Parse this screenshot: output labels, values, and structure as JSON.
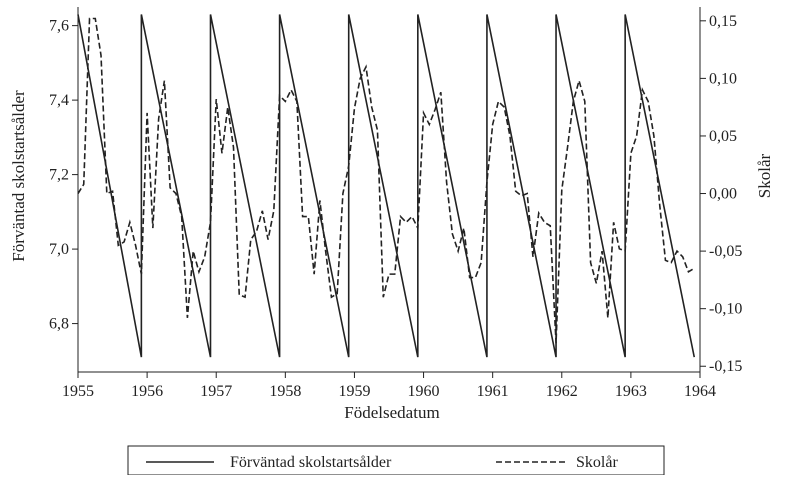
{
  "chart_data": {
    "type": "line",
    "title": "",
    "xlabel": "Födelsedatum",
    "ylabel_left": "Förväntad skolstartsålder",
    "ylabel_right": "Skolår",
    "xlim": [
      1955,
      1964
    ],
    "ylim_left": [
      6.67,
      7.65
    ],
    "ylim_right": [
      -0.155,
      0.162
    ],
    "x_ticks": [
      1955,
      1956,
      1957,
      1958,
      1959,
      1960,
      1961,
      1962,
      1963,
      1964
    ],
    "y_ticks_left": [
      "6,8",
      "7,0",
      "7,2",
      "7,4",
      "7,6"
    ],
    "y_ticks_left_values": [
      6.8,
      7.0,
      7.2,
      7.4,
      7.6
    ],
    "y_ticks_right": [
      "-0,15",
      "-0,10",
      "-0,05",
      "0,00",
      "0,05",
      "0,10",
      "0,15"
    ],
    "y_ticks_right_values": [
      -0.15,
      -0.1,
      -0.05,
      0.0,
      0.05,
      0.1,
      0.15
    ],
    "grid": false,
    "legend_position": "bottom",
    "series": [
      {
        "name": "Förväntad skolstartsålder",
        "axis": "left",
        "style": "solid",
        "color": "#222222",
        "x": [
          1955.0,
          1955.917,
          1955.917,
          1956.917,
          1956.917,
          1957.917,
          1957.917,
          1958.917,
          1958.917,
          1959.917,
          1959.917,
          1960.917,
          1960.917,
          1961.917,
          1961.917,
          1962.917,
          1962.917,
          1963.917
        ],
        "y": [
          7.63,
          6.71,
          7.63,
          6.71,
          7.63,
          6.71,
          7.63,
          6.71,
          7.63,
          6.71,
          7.63,
          6.71,
          7.63,
          6.71,
          7.63,
          6.71,
          7.63,
          6.71
        ]
      },
      {
        "name": "Skolår",
        "axis": "right",
        "style": "dashed",
        "color": "#222222",
        "x": [
          1955.0,
          1955.083,
          1955.167,
          1955.25,
          1955.333,
          1955.417,
          1955.5,
          1955.583,
          1955.667,
          1955.75,
          1955.833,
          1955.917,
          1956.0,
          1956.083,
          1956.167,
          1956.25,
          1956.333,
          1956.417,
          1956.5,
          1956.583,
          1956.667,
          1956.75,
          1956.833,
          1956.917,
          1957.0,
          1957.083,
          1957.167,
          1957.25,
          1957.333,
          1957.417,
          1957.5,
          1957.583,
          1957.667,
          1957.75,
          1957.833,
          1957.917,
          1958.0,
          1958.083,
          1958.167,
          1958.25,
          1958.333,
          1958.417,
          1958.5,
          1958.583,
          1958.667,
          1958.75,
          1958.833,
          1958.917,
          1959.0,
          1959.083,
          1959.167,
          1959.25,
          1959.333,
          1959.417,
          1959.5,
          1959.583,
          1959.667,
          1959.75,
          1959.833,
          1959.917,
          1960.0,
          1960.083,
          1960.167,
          1960.25,
          1960.333,
          1960.417,
          1960.5,
          1960.583,
          1960.667,
          1960.75,
          1960.833,
          1960.917,
          1961.0,
          1961.083,
          1961.167,
          1961.25,
          1961.333,
          1961.417,
          1961.5,
          1961.583,
          1961.667,
          1961.75,
          1961.833,
          1961.917,
          1962.0,
          1962.083,
          1962.167,
          1962.25,
          1962.333,
          1962.417,
          1962.5,
          1962.583,
          1962.667,
          1962.75,
          1962.833,
          1962.917,
          1963.0,
          1963.083,
          1963.167,
          1963.25,
          1963.333,
          1963.417,
          1963.5,
          1963.583,
          1963.667,
          1963.75,
          1963.833,
          1963.917
        ],
        "y": [
          0.0,
          0.008,
          0.152,
          0.152,
          0.12,
          0.0,
          0.002,
          -0.045,
          -0.042,
          -0.025,
          -0.045,
          -0.07,
          0.07,
          -0.03,
          0.065,
          0.098,
          0.005,
          0.0,
          -0.02,
          -0.108,
          -0.05,
          -0.068,
          -0.055,
          -0.025,
          0.082,
          0.035,
          0.075,
          0.04,
          -0.088,
          -0.09,
          -0.04,
          -0.033,
          -0.015,
          -0.04,
          -0.015,
          0.085,
          0.08,
          0.09,
          0.08,
          -0.02,
          -0.02,
          -0.07,
          -0.006,
          -0.05,
          -0.09,
          -0.087,
          0.0,
          0.024,
          0.074,
          0.1,
          0.11,
          0.075,
          0.055,
          -0.09,
          -0.07,
          -0.07,
          -0.02,
          -0.025,
          -0.02,
          -0.03,
          0.07,
          0.06,
          0.073,
          0.088,
          0.01,
          -0.035,
          -0.05,
          -0.03,
          -0.073,
          -0.073,
          -0.06,
          0.01,
          0.06,
          0.08,
          0.075,
          0.05,
          0.002,
          -0.002,
          0.0,
          -0.055,
          -0.017,
          -0.025,
          -0.028,
          -0.13,
          0.003,
          0.04,
          0.08,
          0.098,
          0.08,
          -0.06,
          -0.078,
          -0.05,
          -0.108,
          -0.025,
          -0.048,
          -0.05,
          0.035,
          0.05,
          0.09,
          0.08,
          0.05,
          -0.01,
          -0.058,
          -0.06,
          -0.05,
          -0.055,
          -0.068,
          -0.065
        ]
      }
    ]
  }
}
